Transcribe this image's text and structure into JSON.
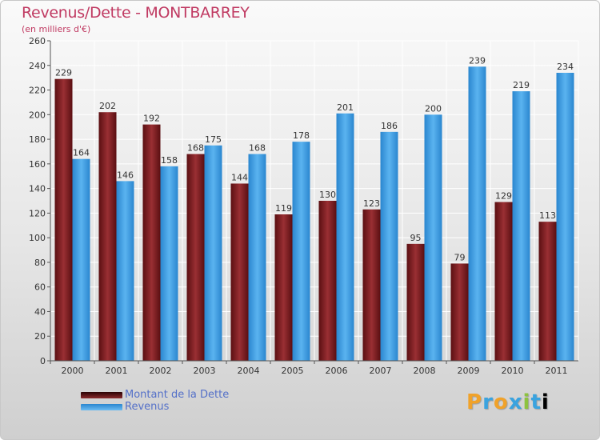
{
  "header": {
    "title": "Revenus/Dette - MONTBARREY",
    "subtitle": "(en milliers d'€)"
  },
  "colors": {
    "dette": "#7a1f22",
    "revenus": "#3d9ce0",
    "title": "#c03a62",
    "legend_text": "#5470c8"
  },
  "chart_data": {
    "type": "bar",
    "title": "Revenus/Dette - MONTBARREY",
    "ylabel": "(en milliers d'€)",
    "xlabel": "",
    "categories": [
      "2000",
      "2001",
      "2002",
      "2003",
      "2004",
      "2005",
      "2006",
      "2007",
      "2008",
      "2009",
      "2010",
      "2011"
    ],
    "series": [
      {
        "name": "Montant de la Dette",
        "values": [
          229,
          202,
          192,
          168,
          144,
          119,
          130,
          123,
          95,
          79,
          129,
          113
        ]
      },
      {
        "name": "Revenus",
        "values": [
          164,
          146,
          158,
          175,
          168,
          178,
          201,
          186,
          200,
          239,
          219,
          234
        ]
      }
    ],
    "ylim": [
      0,
      260
    ],
    "yticks": [
      0,
      20,
      40,
      60,
      80,
      100,
      120,
      140,
      160,
      180,
      200,
      220,
      240,
      260
    ],
    "grid": true,
    "legend_position": "bottom-left"
  },
  "legend": {
    "items": [
      {
        "label": "Montant de la Dette"
      },
      {
        "label": "Revenus"
      }
    ]
  },
  "logo": {
    "text": "Proxiti",
    "letters": [
      "P",
      "r",
      "o",
      "x",
      "i",
      "t",
      "i"
    ]
  }
}
